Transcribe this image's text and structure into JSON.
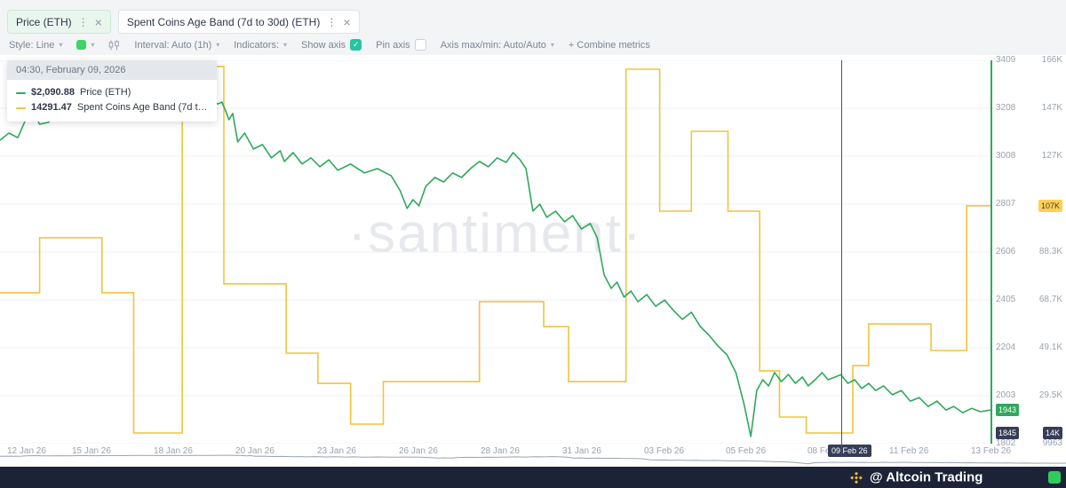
{
  "tabs": {
    "price": {
      "label": "Price (ETH)"
    },
    "band": {
      "label": "Spent Coins Age Band (7d to 30d) (ETH)"
    }
  },
  "toolbar": {
    "style_label": "Style: Line",
    "interval_label": "Interval: Auto (1h)",
    "indicators_label": "Indicators:",
    "show_axis_label": "Show axis",
    "pin_axis_label": "Pin axis",
    "axis_maxmin_label": "Axis max/min: Auto/Auto",
    "combine_label": "+ Combine metrics"
  },
  "icons": {
    "more_options": "⋮",
    "close": "×",
    "caret_down": "▾",
    "check": "✓"
  },
  "tooltip": {
    "header": "04:30, February 09, 2026",
    "rows": [
      {
        "value": "$2,090.88",
        "label": "Price (ETH)"
      },
      {
        "value": "14291.47",
        "label": "Spent Coins Age Band (7d to 30d) (ETH)"
      }
    ]
  },
  "watermark": "·santiment·",
  "footer": {
    "handle": "@ Altcoin Trading"
  },
  "colors": {
    "price_line": "#2fa85c",
    "band_line": "#f0c33f",
    "grid": "#edeff3",
    "crosshair": "#4a5170",
    "checkbox_teal": "#28c2a3",
    "style_swatch": "#3bd466",
    "tab_active_bg": "#e9f6ee",
    "badge_dark": "#363d58",
    "badge_yellow": "#ffd152",
    "footer_bg": "#1d2337",
    "binance_yellow": "#f3ba2f",
    "widget_green": "#2ecc5e",
    "watermark_gray": "#e6e8ed",
    "minimap_line": "#9aa3b2"
  },
  "chart_data": {
    "type": "line",
    "title": "",
    "grid": true,
    "legend_position": "top-left tooltip",
    "x_range": [
      "12 Jan 26",
      "13 Feb 26"
    ],
    "crosshair_t": 0.849,
    "series": [
      {
        "name": "Price (ETH)",
        "color": "#2fa85c",
        "axis": "price",
        "step": false,
        "points": [
          [
            0,
            3074
          ],
          [
            0.009,
            3104
          ],
          [
            0.018,
            3085
          ],
          [
            0.027,
            3171
          ],
          [
            0.034,
            3186
          ],
          [
            0.04,
            3141
          ],
          [
            0.049,
            3149
          ],
          [
            0.054,
            3178
          ],
          [
            0.063,
            3160
          ],
          [
            0.076,
            3197
          ],
          [
            0.09,
            3182
          ],
          [
            0.103,
            3208
          ],
          [
            0.117,
            3192
          ],
          [
            0.13,
            3221
          ],
          [
            0.143,
            3203
          ],
          [
            0.157,
            3228
          ],
          [
            0.17,
            3210
          ],
          [
            0.184,
            3238
          ],
          [
            0.197,
            3218
          ],
          [
            0.211,
            3242
          ],
          [
            0.22,
            3226
          ],
          [
            0.224,
            3234
          ],
          [
            0.228,
            3196
          ],
          [
            0.231,
            3160
          ],
          [
            0.235,
            3186
          ],
          [
            0.24,
            3067
          ],
          [
            0.247,
            3104
          ],
          [
            0.256,
            3037
          ],
          [
            0.265,
            3056
          ],
          [
            0.274,
            3000
          ],
          [
            0.283,
            3030
          ],
          [
            0.287,
            2985
          ],
          [
            0.296,
            3022
          ],
          [
            0.305,
            2974
          ],
          [
            0.314,
            3000
          ],
          [
            0.323,
            2963
          ],
          [
            0.332,
            2992
          ],
          [
            0.341,
            2948
          ],
          [
            0.354,
            2974
          ],
          [
            0.368,
            2937
          ],
          [
            0.381,
            2955
          ],
          [
            0.395,
            2925
          ],
          [
            0.404,
            2862
          ],
          [
            0.411,
            2788
          ],
          [
            0.417,
            2825
          ],
          [
            0.423,
            2799
          ],
          [
            0.43,
            2881
          ],
          [
            0.439,
            2918
          ],
          [
            0.448,
            2899
          ],
          [
            0.457,
            2937
          ],
          [
            0.466,
            2918
          ],
          [
            0.475,
            2955
          ],
          [
            0.484,
            2985
          ],
          [
            0.493,
            2963
          ],
          [
            0.502,
            3000
          ],
          [
            0.511,
            2981
          ],
          [
            0.518,
            3022
          ],
          [
            0.525,
            2992
          ],
          [
            0.531,
            2955
          ],
          [
            0.538,
            2777
          ],
          [
            0.545,
            2806
          ],
          [
            0.552,
            2751
          ],
          [
            0.561,
            2777
          ],
          [
            0.57,
            2732
          ],
          [
            0.578,
            2758
          ],
          [
            0.587,
            2702
          ],
          [
            0.596,
            2725
          ],
          [
            0.603,
            2665
          ],
          [
            0.61,
            2509
          ],
          [
            0.617,
            2453
          ],
          [
            0.623,
            2479
          ],
          [
            0.63,
            2416
          ],
          [
            0.637,
            2442
          ],
          [
            0.644,
            2397
          ],
          [
            0.653,
            2427
          ],
          [
            0.662,
            2378
          ],
          [
            0.671,
            2404
          ],
          [
            0.68,
            2360
          ],
          [
            0.689,
            2323
          ],
          [
            0.698,
            2353
          ],
          [
            0.707,
            2293
          ],
          [
            0.716,
            2256
          ],
          [
            0.725,
            2211
          ],
          [
            0.734,
            2174
          ],
          [
            0.743,
            2100
          ],
          [
            0.751,
            1970
          ],
          [
            0.758,
            1832
          ],
          [
            0.764,
            2025
          ],
          [
            0.77,
            2070
          ],
          [
            0.776,
            2044
          ],
          [
            0.782,
            2100
          ],
          [
            0.789,
            2062
          ],
          [
            0.796,
            2092
          ],
          [
            0.803,
            2055
          ],
          [
            0.81,
            2081
          ],
          [
            0.816,
            2044
          ],
          [
            0.823,
            2070
          ],
          [
            0.83,
            2100
          ],
          [
            0.836,
            2070
          ],
          [
            0.843,
            2081
          ],
          [
            0.849,
            2091
          ],
          [
            0.856,
            2055
          ],
          [
            0.863,
            2070
          ],
          [
            0.87,
            2033
          ],
          [
            0.877,
            2055
          ],
          [
            0.884,
            2025
          ],
          [
            0.892,
            2044
          ],
          [
            0.901,
            2007
          ],
          [
            0.91,
            2025
          ],
          [
            0.919,
            1980
          ],
          [
            0.928,
            1995
          ],
          [
            0.937,
            1958
          ],
          [
            0.946,
            1980
          ],
          [
            0.955,
            1943
          ],
          [
            0.963,
            1958
          ],
          [
            0.972,
            1932
          ],
          [
            0.981,
            1950
          ],
          [
            0.99,
            1936
          ],
          [
            1,
            1943
          ]
        ]
      },
      {
        "name": "Spent Coins Age Band (7d to 30d) (ETH)",
        "color": "#f0c33f",
        "axis": "band",
        "step": true,
        "points": [
          [
            0,
            71400
          ],
          [
            0.04,
            93800
          ],
          [
            0.103,
            71400
          ],
          [
            0.135,
            14300
          ],
          [
            0.184,
            163500
          ],
          [
            0.226,
            75000
          ],
          [
            0.289,
            46800
          ],
          [
            0.321,
            34500
          ],
          [
            0.354,
            17900
          ],
          [
            0.387,
            35200
          ],
          [
            0.484,
            67800
          ],
          [
            0.549,
            57600
          ],
          [
            0.574,
            35200
          ],
          [
            0.632,
            162400
          ],
          [
            0.666,
            104600
          ],
          [
            0.698,
            137100
          ],
          [
            0.735,
            104600
          ],
          [
            0.767,
            39600
          ],
          [
            0.787,
            20800
          ],
          [
            0.814,
            14300
          ],
          [
            0.861,
            41700
          ],
          [
            0.877,
            58700
          ],
          [
            0.94,
            47900
          ],
          [
            0.976,
            106800
          ]
        ]
      }
    ],
    "price_axis": {
      "range": [
        1802,
        3409
      ],
      "ticks": [
        "3409",
        "3208",
        "3008",
        "2807",
        "2606",
        "2405",
        "2204",
        "2003",
        "1802"
      ],
      "badges": [
        {
          "label": "1943",
          "value": 1943,
          "style": "green"
        },
        {
          "label": "1845",
          "value": 1845,
          "style": "dark"
        }
      ]
    },
    "band_axis": {
      "range": [
        9963,
        166000
      ],
      "ticks": [
        "166K",
        "147K",
        "127K",
        "107K",
        "88.3K",
        "68.7K",
        "49.1K",
        "29.5K",
        "9963"
      ],
      "badges": [
        {
          "label": "107K",
          "value": 106800,
          "style": "yellow"
        },
        {
          "label": "14K",
          "value": 14291,
          "style": "dark"
        }
      ]
    },
    "x_axis": {
      "labels": [
        {
          "label": "12 Jan 26",
          "t": 0.007
        },
        {
          "label": "15 Jan 26",
          "t": 0.073
        },
        {
          "label": "18 Jan 26",
          "t": 0.155
        },
        {
          "label": "20 Jan 26",
          "t": 0.238
        },
        {
          "label": "23 Jan 26",
          "t": 0.32
        },
        {
          "label": "26 Jan 26",
          "t": 0.403
        },
        {
          "label": "28 Jan 26",
          "t": 0.485
        },
        {
          "label": "31 Jan 26",
          "t": 0.568
        },
        {
          "label": "03 Feb 26",
          "t": 0.65
        },
        {
          "label": "05 Feb 26",
          "t": 0.733
        },
        {
          "label": "08 Feb 26",
          "t": 0.815
        },
        {
          "label": "11 Feb 26",
          "t": 0.898
        },
        {
          "label": "13 Feb 26",
          "t": 0.98
        }
      ],
      "badge": {
        "label": "09 Feb 26",
        "t": 0.836
      }
    }
  }
}
